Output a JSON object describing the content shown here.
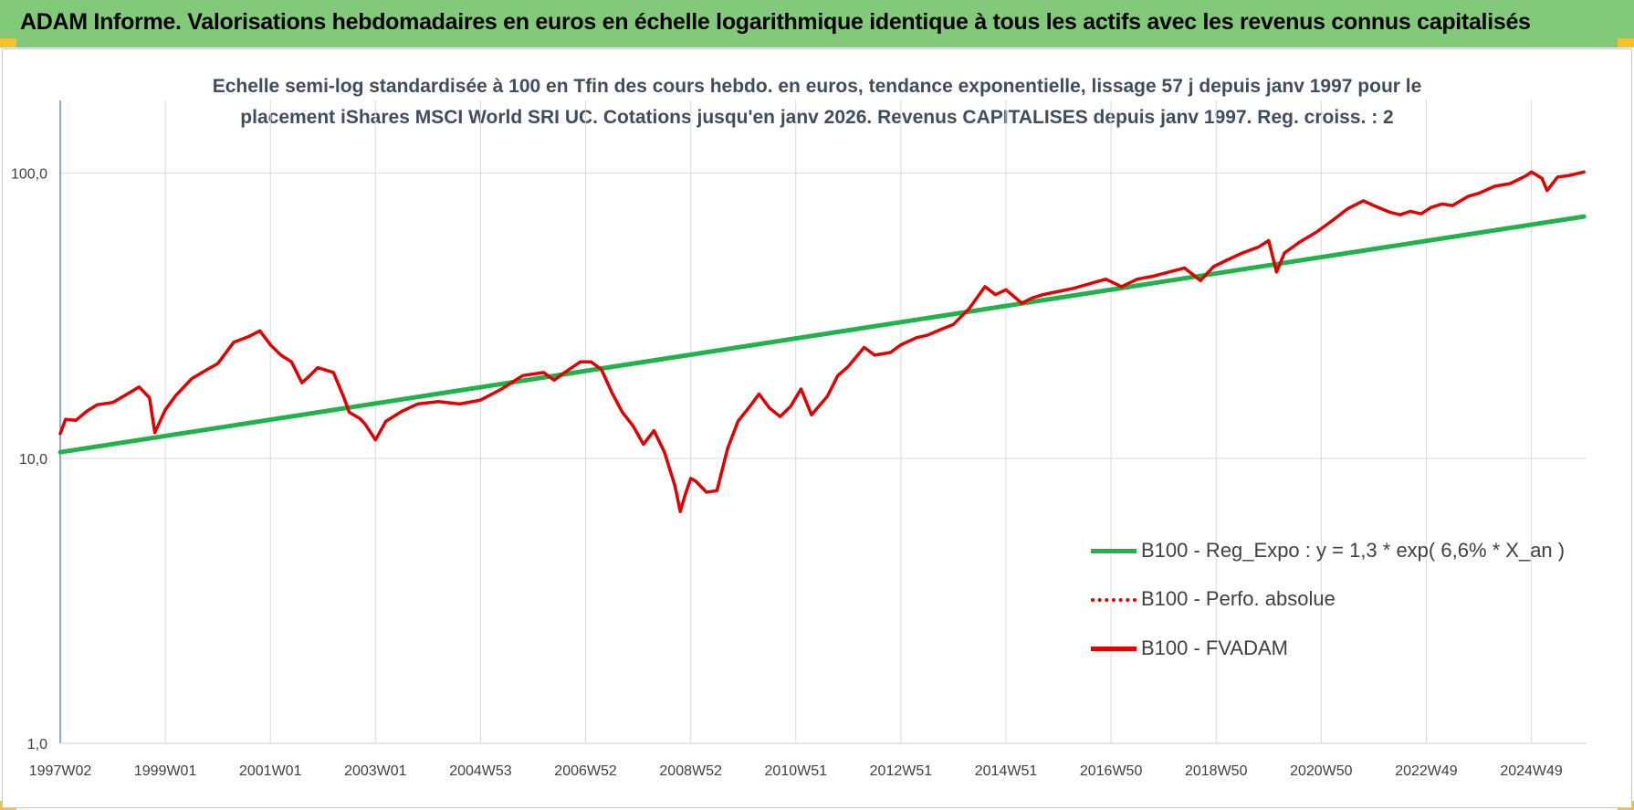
{
  "header": {
    "title": "ADAM Informe. Valorisations hebdomadaires en euros en échelle logarithmique identique à tous les actifs avec les revenus connus capitalisés",
    "background": "#82c97a",
    "corner_color": "#f1c232"
  },
  "chart_data": {
    "type": "line",
    "title_line1": "Echelle semi-log standardisée à 100 en Tfin des cours hebdo. en euros, tendance exponentielle, lissage 57 j depuis janv 1997 pour le",
    "title_line2": "placement iShares MSCI World SRI UC. Cotations jusqu'en janv 2026. Revenus CAPITALISES depuis janv 1997. Reg. croiss. : 2",
    "y_scale": "log",
    "ylim": [
      1,
      180
    ],
    "y_ticks": [
      {
        "value": 100,
        "label": "100,0"
      },
      {
        "value": 10,
        "label": "10,0"
      },
      {
        "value": 1,
        "label": "1,0"
      }
    ],
    "xlim": [
      1997.0,
      2026.05
    ],
    "x_ticks": [
      {
        "x": 1997.0,
        "label": "1997W02"
      },
      {
        "x": 1999.0,
        "label": "1999W01"
      },
      {
        "x": 2001.0,
        "label": "2001W01"
      },
      {
        "x": 2003.0,
        "label": "2003W01"
      },
      {
        "x": 2005.0,
        "label": "2004W53"
      },
      {
        "x": 2007.0,
        "label": "2006W52"
      },
      {
        "x": 2009.0,
        "label": "2008W52"
      },
      {
        "x": 2011.0,
        "label": "2010W51"
      },
      {
        "x": 2013.0,
        "label": "2012W51"
      },
      {
        "x": 2015.0,
        "label": "2014W51"
      },
      {
        "x": 2017.0,
        "label": "2016W50"
      },
      {
        "x": 2019.0,
        "label": "2018W50"
      },
      {
        "x": 2021.0,
        "label": "2020W50"
      },
      {
        "x": 2023.0,
        "label": "2022W49"
      },
      {
        "x": 2025.0,
        "label": "2024W49"
      }
    ],
    "grid": true,
    "legend_position": "lower-right",
    "series": [
      {
        "name": "B100 - Reg_Expo : y = 1,3 * exp( 6,6% *  X_an )",
        "color": "#22b14c",
        "style": "solid",
        "x": [
          1997.0,
          2026.0
        ],
        "y": [
          10.5,
          70.5
        ]
      },
      {
        "name": "B100 - Perfo. absolue",
        "color": "#e00000",
        "style": "dotted",
        "x": [],
        "y": []
      },
      {
        "name": "B100 - FVADAM",
        "color": "#e00000",
        "style": "solid",
        "x": [
          1997.0,
          1997.1,
          1997.3,
          1997.5,
          1997.7,
          1998.0,
          1998.3,
          1998.5,
          1998.7,
          1998.8,
          1999.0,
          1999.2,
          1999.5,
          1999.8,
          2000.0,
          2000.3,
          2000.6,
          2000.8,
          2001.0,
          2001.2,
          2001.4,
          2001.6,
          2001.75,
          2001.9,
          2002.2,
          2002.4,
          2002.5,
          2002.7,
          2002.8,
          2003.0,
          2003.2,
          2003.5,
          2003.8,
          2004.2,
          2004.6,
          2005.0,
          2005.4,
          2005.8,
          2006.2,
          2006.4,
          2006.6,
          2006.9,
          2007.1,
          2007.3,
          2007.5,
          2007.7,
          2007.9,
          2008.1,
          2008.3,
          2008.5,
          2008.7,
          2008.8,
          2008.9,
          2009.0,
          2009.1,
          2009.3,
          2009.5,
          2009.7,
          2009.9,
          2010.1,
          2010.3,
          2010.5,
          2010.7,
          2010.9,
          2011.1,
          2011.3,
          2011.6,
          2011.8,
          2012.0,
          2012.3,
          2012.5,
          2012.8,
          2013.0,
          2013.3,
          2013.5,
          2013.8,
          2014.0,
          2014.3,
          2014.6,
          2014.8,
          2015.0,
          2015.3,
          2015.5,
          2015.7,
          2016.0,
          2016.3,
          2016.6,
          2016.9,
          2017.2,
          2017.5,
          2017.8,
          2018.1,
          2018.4,
          2018.7,
          2018.95,
          2019.2,
          2019.5,
          2019.8,
          2020.0,
          2020.15,
          2020.3,
          2020.6,
          2020.9,
          2021.2,
          2021.5,
          2021.8,
          2022.0,
          2022.3,
          2022.5,
          2022.7,
          2022.9,
          2023.1,
          2023.3,
          2023.5,
          2023.8,
          2024.0,
          2024.3,
          2024.6,
          2024.9,
          2025.0,
          2025.2,
          2025.3,
          2025.5,
          2025.7,
          2025.9,
          2026.0
        ],
        "y": [
          12.2,
          13.7,
          13.6,
          14.6,
          15.4,
          15.7,
          16.9,
          17.8,
          16.3,
          12.3,
          14.8,
          16.6,
          19.0,
          20.5,
          21.5,
          25.5,
          26.8,
          28.0,
          25.0,
          23.0,
          21.8,
          18.4,
          19.5,
          20.8,
          20.0,
          16.3,
          14.5,
          13.8,
          13.2,
          11.6,
          13.5,
          14.6,
          15.5,
          15.8,
          15.5,
          16.0,
          17.5,
          19.5,
          20.0,
          18.8,
          20.0,
          21.8,
          21.8,
          20.5,
          17.0,
          14.5,
          13.0,
          11.2,
          12.5,
          10.5,
          8.0,
          6.5,
          7.5,
          8.5,
          8.3,
          7.6,
          7.7,
          10.8,
          13.5,
          15.0,
          16.8,
          15.0,
          14.0,
          15.2,
          17.5,
          14.2,
          16.5,
          19.5,
          21.0,
          24.5,
          23.0,
          23.5,
          25.0,
          26.5,
          27.0,
          28.5,
          29.5,
          33.5,
          40.0,
          37.5,
          39.0,
          35.0,
          36.5,
          37.5,
          38.5,
          39.5,
          41.0,
          42.5,
          40.0,
          42.5,
          43.5,
          45.0,
          46.5,
          42.0,
          47.0,
          49.5,
          52.5,
          55.0,
          58.0,
          45.0,
          52.5,
          57.5,
          62.0,
          68.0,
          75.0,
          80.0,
          77.0,
          73.0,
          71.5,
          73.5,
          72.0,
          76.0,
          78.0,
          77.0,
          83.0,
          85.0,
          90.0,
          92.0,
          98.0,
          101.0,
          96.0,
          87.0,
          97.0,
          98.0,
          100.0,
          101.0
        ]
      }
    ]
  }
}
